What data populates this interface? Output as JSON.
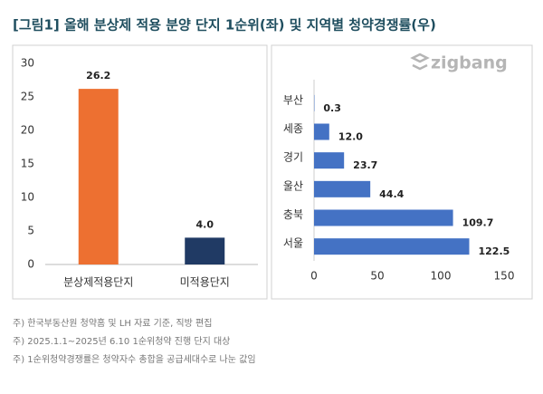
{
  "title": "[그림1] 올해 분상제 적용 분양 단지 1순위(좌) 및 지역별 청약경쟁률(우)",
  "logo": "zigbang",
  "footnotes": [
    "주) 한국부동산원 청약홈 및 LH 자료 기준, 직방 편집",
    "주) 2025.1.1~2025년 6.10 1순위청약 진행 단지 대상",
    "주) 1순위청약경쟁률은 청약자수 총합을 공급세대수로 나눈 값임"
  ],
  "chart_data": [
    {
      "type": "bar",
      "categories": [
        "분상제적용단지",
        "미적용단지"
      ],
      "values": [
        26.2,
        4
      ],
      "value_labels": [
        "26.2",
        "4.0"
      ],
      "colors": [
        "#ed7031",
        "#203a64"
      ],
      "ylim": [
        0,
        30
      ],
      "yticks": [
        0,
        5,
        10,
        15,
        20,
        25,
        30
      ],
      "grid": false
    },
    {
      "type": "barh",
      "categories": [
        "부산",
        "세종",
        "경기",
        "울산",
        "충북",
        "서울"
      ],
      "values": [
        0.3,
        12,
        23.7,
        44.4,
        109.7,
        122.5
      ],
      "value_labels": [
        "0.3",
        "12.0",
        "23.7",
        "44.4",
        "109.7",
        "122.5"
      ],
      "color": "#4472c4",
      "xlim": [
        0,
        150
      ],
      "xticks": [
        0,
        50,
        100,
        150
      ],
      "grid": false
    }
  ]
}
